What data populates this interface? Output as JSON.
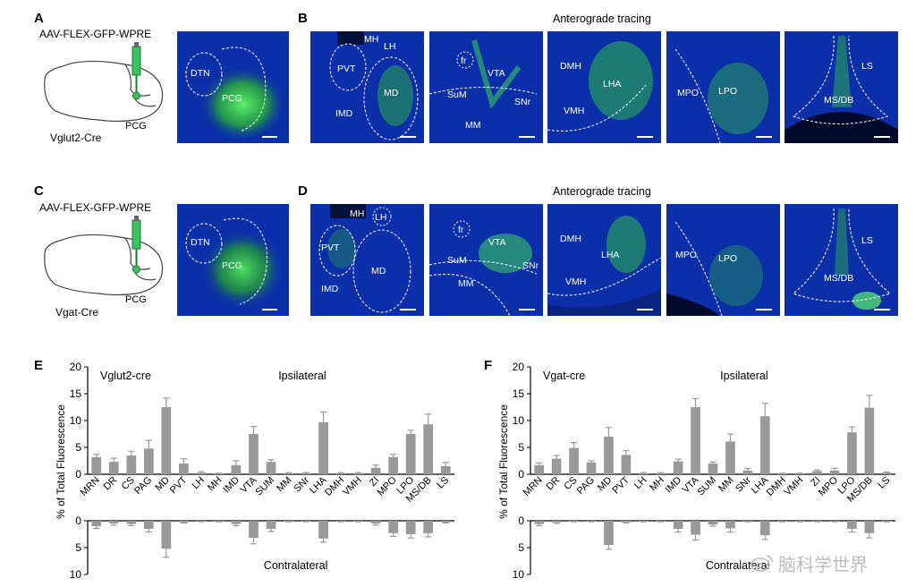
{
  "panels": {
    "A": {
      "label": "A",
      "vector": "AAV-FLEX-GFP-WPRE",
      "cre": "Vglut2-Cre",
      "injection": "PCG",
      "inset": {
        "regions": [
          "DTN",
          "PCG"
        ]
      }
    },
    "C": {
      "label": "C",
      "vector": "AAV-FLEX-GFP-WPRE",
      "cre": "Vgat-Cre",
      "injection": "PCG",
      "inset": {
        "regions": [
          "DTN",
          "PCG"
        ]
      }
    },
    "B": {
      "label": "B",
      "title": "Anterograde tracing",
      "sections": [
        {
          "regions": [
            "MH",
            "LH",
            "PVT",
            "IMD",
            "MD"
          ]
        },
        {
          "regions": [
            "fr",
            "VTA",
            "SuM",
            "SNr",
            "MM"
          ]
        },
        {
          "regions": [
            "DMH",
            "LHA",
            "VMH"
          ]
        },
        {
          "regions": [
            "MPO",
            "LPO"
          ]
        },
        {
          "regions": [
            "LS",
            "MS/DB"
          ]
        }
      ]
    },
    "D": {
      "label": "D",
      "title": "Anterograde tracing",
      "sections": [
        {
          "regions": [
            "MH",
            "LH",
            "PVT",
            "IMD",
            "MD"
          ]
        },
        {
          "regions": [
            "fr",
            "VTA",
            "SuM",
            "SNr",
            "MM"
          ]
        },
        {
          "regions": [
            "DMH",
            "LHA",
            "VMH"
          ]
        },
        {
          "regions": [
            "MPO",
            "LPO"
          ]
        },
        {
          "regions": [
            "LS",
            "MS/DB"
          ]
        }
      ]
    }
  },
  "chart_data": [
    {
      "type": "bar",
      "panel": "E",
      "title": "Vglut2-cre",
      "ylabel": "% of Total Fluorescence",
      "upper_label": "Ipsilateral",
      "lower_label": "Contralateral",
      "ylim_upper": [
        0,
        20
      ],
      "ylim_lower": [
        0,
        10
      ],
      "yticks_upper": [
        "0",
        "5",
        "10",
        "15",
        "20"
      ],
      "yticks_lower": [
        "0",
        "5",
        "10"
      ],
      "categories": [
        "MRN",
        "DR",
        "CS",
        "PAG",
        "MD",
        "PVT",
        "LH",
        "MH",
        "IMD",
        "VTA",
        "SUM",
        "MM",
        "SNr",
        "LHA",
        "DMH",
        "VMH",
        "ZI",
        "MPO",
        "LPO",
        "MS/DB",
        "LS"
      ],
      "series": [
        {
          "name": "Ipsilateral",
          "values": [
            3.2,
            2.3,
            3.5,
            4.8,
            12.5,
            2.0,
            0.3,
            0.1,
            1.7,
            7.5,
            2.3,
            0.2,
            0.2,
            9.7,
            0.2,
            0.2,
            1.2,
            3.2,
            7.5,
            9.3,
            1.5
          ],
          "errors": [
            0.5,
            0.7,
            0.8,
            1.5,
            1.7,
            0.9,
            0.2,
            0.1,
            0.8,
            1.4,
            0.4,
            0.1,
            0.1,
            1.9,
            0.1,
            0.1,
            0.5,
            0.5,
            0.7,
            1.9,
            0.7
          ]
        },
        {
          "name": "Contralateral",
          "values": [
            1.0,
            0.5,
            0.6,
            1.5,
            5.2,
            0.3,
            0.1,
            0.1,
            0.6,
            3.2,
            1.5,
            0.1,
            0.1,
            3.3,
            0.1,
            0.1,
            0.5,
            2.3,
            2.5,
            2.3,
            0.3
          ],
          "errors": [
            0.4,
            0.3,
            0.3,
            0.6,
            1.6,
            0.1,
            0.1,
            0.1,
            0.3,
            1.1,
            0.5,
            0.1,
            0.1,
            0.7,
            0.1,
            0.1,
            0.3,
            0.6,
            0.7,
            0.7,
            0.1
          ]
        }
      ]
    },
    {
      "type": "bar",
      "panel": "F",
      "title": "Vgat-cre",
      "ylabel": "% of Total Fluorescence",
      "upper_label": "Ipsilateral",
      "lower_label": "Contralateral",
      "ylim_upper": [
        0,
        20
      ],
      "ylim_lower": [
        0,
        10
      ],
      "yticks_upper": [
        "0",
        "5",
        "10",
        "15",
        "20"
      ],
      "yticks_lower": [
        "0",
        "5",
        "10"
      ],
      "categories": [
        "MRN",
        "DR",
        "CS",
        "PAG",
        "MD",
        "PVT",
        "LH",
        "MH",
        "IMD",
        "VTA",
        "SUM",
        "MM",
        "SNr",
        "LHA",
        "DMH",
        "VMH",
        "ZI",
        "MPO",
        "LPO",
        "MS/DB",
        "LS"
      ],
      "series": [
        {
          "name": "Ipsilateral",
          "values": [
            1.7,
            2.9,
            4.9,
            2.2,
            7.0,
            3.6,
            0.2,
            0.2,
            2.4,
            12.5,
            2.0,
            6.1,
            0.7,
            10.8,
            0.1,
            0.1,
            0.6,
            0.7,
            7.8,
            12.4,
            0.3
          ],
          "errors": [
            0.4,
            0.6,
            1.0,
            0.3,
            1.7,
            0.8,
            0.1,
            0.1,
            0.4,
            1.6,
            0.3,
            1.4,
            0.4,
            2.4,
            0.1,
            0.1,
            0.2,
            0.4,
            1.0,
            2.3,
            0.1
          ]
        },
        {
          "name": "Contralateral",
          "values": [
            0.6,
            0.3,
            0.1,
            0.1,
            4.5,
            0.3,
            0.1,
            0.1,
            1.5,
            2.6,
            0.7,
            1.4,
            0.1,
            2.7,
            0.1,
            0.1,
            0.1,
            0.1,
            1.5,
            2.3,
            0.1
          ],
          "errors": [
            0.3,
            0.2,
            0.1,
            0.1,
            0.8,
            0.1,
            0.1,
            0.1,
            0.6,
            1.0,
            0.3,
            0.7,
            0.1,
            0.8,
            0.1,
            0.1,
            0.1,
            0.1,
            0.6,
            0.9,
            0.1
          ]
        }
      ]
    }
  ],
  "watermark": {
    "text": "脑科学世界"
  },
  "colors": {
    "bar": "#999999",
    "tissue": "#0b2fa8",
    "gfp": "#36d24a"
  }
}
